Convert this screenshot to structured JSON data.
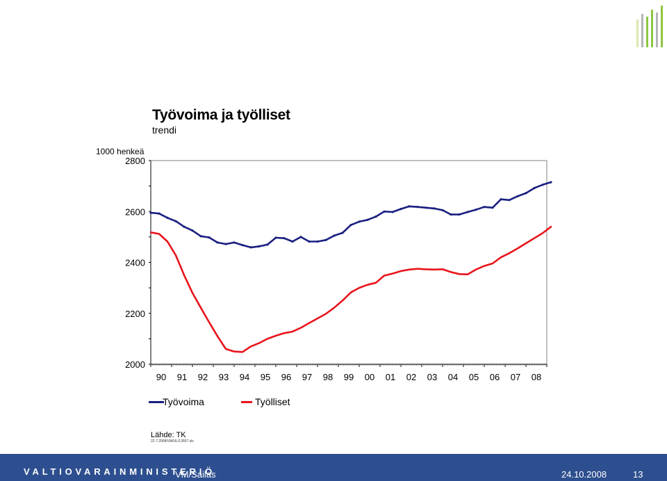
{
  "slide": {
    "title": "Työvoima ja työlliset",
    "subtitle": "trendi",
    "source": "Lähde: TK",
    "file_reference": "22.7.2008/VM/UL/13507.xls"
  },
  "footer": {
    "organization": "VALTIOVARAINMINISTERIÖ",
    "author": "VM/Sailas",
    "date": "24.10.2008",
    "page": "13",
    "background_color": "#2d4f8f"
  },
  "logo": {
    "icon": "bar-logo-icon",
    "colors": [
      "#8dc63f",
      "#b5b5b5",
      "#d9e8b0"
    ]
  },
  "chart_data": {
    "type": "line",
    "title": "Työvoima ja työlliset",
    "subtitle": "trendi",
    "ylabel": "1000 henkeä",
    "xlabel": "",
    "ylim": [
      2000,
      2800
    ],
    "yticks": [
      2000,
      2200,
      2400,
      2600,
      2800
    ],
    "ytick_labels": [
      "2000",
      "2200",
      "2400",
      "2600",
      "2800"
    ],
    "xlim": [
      1990,
      2009
    ],
    "xtick_labels": [
      "90",
      "91",
      "92",
      "93",
      "94",
      "95",
      "96",
      "97",
      "98",
      "99",
      "00",
      "01",
      "02",
      "03",
      "04",
      "05",
      "06",
      "07",
      "08"
    ],
    "legend_position": "bottom",
    "grid": false,
    "series": [
      {
        "name": "Työvoima",
        "color": "#1a1f80",
        "marker": true,
        "points": [
          [
            1990.0,
            2595
          ],
          [
            1990.4,
            2592
          ],
          [
            1990.8,
            2575
          ],
          [
            1991.2,
            2562
          ],
          [
            1991.6,
            2540
          ],
          [
            1992.0,
            2525
          ],
          [
            1992.4,
            2503
          ],
          [
            1992.8,
            2498
          ],
          [
            1993.2,
            2478
          ],
          [
            1993.6,
            2472
          ],
          [
            1994.0,
            2478
          ],
          [
            1994.4,
            2468
          ],
          [
            1994.8,
            2459
          ],
          [
            1995.2,
            2463
          ],
          [
            1995.6,
            2470
          ],
          [
            1996.0,
            2497
          ],
          [
            1996.4,
            2495
          ],
          [
            1996.8,
            2482
          ],
          [
            1997.2,
            2500
          ],
          [
            1997.6,
            2482
          ],
          [
            1998.0,
            2482
          ],
          [
            1998.4,
            2488
          ],
          [
            1998.8,
            2505
          ],
          [
            1999.2,
            2516
          ],
          [
            1999.6,
            2547
          ],
          [
            2000.0,
            2560
          ],
          [
            2000.4,
            2567
          ],
          [
            2000.8,
            2580
          ],
          [
            2001.2,
            2600
          ],
          [
            2001.6,
            2598
          ],
          [
            2002.0,
            2610
          ],
          [
            2002.4,
            2620
          ],
          [
            2002.8,
            2618
          ],
          [
            2003.2,
            2615
          ],
          [
            2003.6,
            2612
          ],
          [
            2004.0,
            2605
          ],
          [
            2004.4,
            2588
          ],
          [
            2004.8,
            2588
          ],
          [
            2005.2,
            2598
          ],
          [
            2005.6,
            2607
          ],
          [
            2006.0,
            2618
          ],
          [
            2006.4,
            2615
          ],
          [
            2006.8,
            2648
          ],
          [
            2007.2,
            2645
          ],
          [
            2007.6,
            2660
          ],
          [
            2008.0,
            2672
          ],
          [
            2008.4,
            2692
          ],
          [
            2008.8,
            2705
          ],
          [
            2009.2,
            2715
          ]
        ]
      },
      {
        "name": "Työlliset",
        "color": "#e8141b",
        "marker": false,
        "points": [
          [
            1990.0,
            2518
          ],
          [
            1990.4,
            2512
          ],
          [
            1990.8,
            2482
          ],
          [
            1991.2,
            2428
          ],
          [
            1991.6,
            2350
          ],
          [
            1992.0,
            2280
          ],
          [
            1992.4,
            2222
          ],
          [
            1992.8,
            2165
          ],
          [
            1993.2,
            2110
          ],
          [
            1993.6,
            2060
          ],
          [
            1994.0,
            2050
          ],
          [
            1994.4,
            2048
          ],
          [
            1994.8,
            2070
          ],
          [
            1995.2,
            2083
          ],
          [
            1995.6,
            2100
          ],
          [
            1996.0,
            2112
          ],
          [
            1996.4,
            2122
          ],
          [
            1996.8,
            2128
          ],
          [
            1997.2,
            2143
          ],
          [
            1997.6,
            2162
          ],
          [
            1998.0,
            2180
          ],
          [
            1998.4,
            2198
          ],
          [
            1998.8,
            2222
          ],
          [
            1999.2,
            2250
          ],
          [
            1999.6,
            2282
          ],
          [
            2000.0,
            2300
          ],
          [
            2000.4,
            2312
          ],
          [
            2000.8,
            2320
          ],
          [
            2001.2,
            2348
          ],
          [
            2001.6,
            2356
          ],
          [
            2002.0,
            2366
          ],
          [
            2002.4,
            2372
          ],
          [
            2002.8,
            2375
          ],
          [
            2003.2,
            2373
          ],
          [
            2003.6,
            2372
          ],
          [
            2004.0,
            2373
          ],
          [
            2004.4,
            2362
          ],
          [
            2004.8,
            2354
          ],
          [
            2005.2,
            2353
          ],
          [
            2005.6,
            2372
          ],
          [
            2006.0,
            2386
          ],
          [
            2006.4,
            2396
          ],
          [
            2006.8,
            2420
          ],
          [
            2007.2,
            2436
          ],
          [
            2007.6,
            2455
          ],
          [
            2008.0,
            2475
          ],
          [
            2008.4,
            2495
          ],
          [
            2008.8,
            2515
          ],
          [
            2009.2,
            2540
          ]
        ]
      }
    ]
  }
}
